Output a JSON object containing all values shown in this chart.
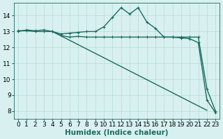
{
  "line1_x": [
    0,
    1,
    2,
    3,
    4,
    5,
    6,
    7,
    8,
    9,
    10,
    11,
    12,
    13,
    14,
    15,
    16,
    17,
    18,
    19,
    20,
    21,
    22,
    23
  ],
  "line1_y": [
    13.0,
    13.1,
    13.05,
    13.1,
    13.0,
    12.85,
    12.9,
    12.95,
    13.0,
    13.0,
    13.3,
    13.9,
    14.5,
    14.1,
    14.5,
    13.6,
    13.2,
    12.65,
    12.65,
    12.6,
    12.55,
    12.3,
    8.7,
    7.9
  ],
  "line2_x": [
    0,
    1,
    2,
    3,
    4,
    5,
    6,
    7,
    8,
    9,
    10,
    11,
    12,
    13,
    14,
    15,
    16,
    17,
    18,
    19,
    20,
    21,
    22,
    23
  ],
  "line2_y": [
    13.05,
    13.05,
    13.0,
    13.0,
    13.0,
    12.75,
    12.65,
    12.7,
    12.65,
    12.65,
    12.65,
    12.65,
    12.65,
    12.65,
    12.65,
    12.65,
    12.65,
    12.65,
    12.65,
    12.65,
    12.65,
    12.65,
    9.4,
    8.0
  ],
  "line3_x": [
    4,
    22
  ],
  "line3_y": [
    13.0,
    8.05
  ],
  "line_color": "#1a6b5e",
  "bg_color": "#d8f0f0",
  "grid_color": "#b8dada",
  "xlabel": "Humidex (Indice chaleur)",
  "ylim": [
    7.5,
    14.8
  ],
  "xlim": [
    -0.5,
    23.5
  ],
  "yticks": [
    8,
    9,
    10,
    11,
    12,
    13,
    14
  ],
  "xticks": [
    0,
    1,
    2,
    3,
    4,
    5,
    6,
    7,
    8,
    9,
    10,
    11,
    12,
    13,
    14,
    15,
    16,
    17,
    18,
    19,
    20,
    21,
    22,
    23
  ],
  "xlabel_fontsize": 7.5,
  "tick_fontsize": 6.5,
  "line_width": 1.0,
  "marker": "+",
  "marker_size": 3.5,
  "marker_lw": 0.8
}
